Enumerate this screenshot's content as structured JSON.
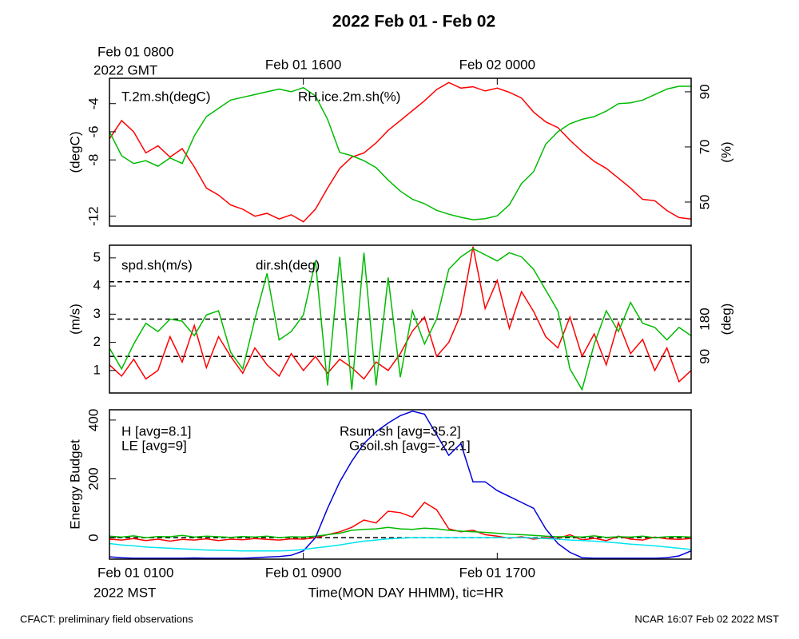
{
  "title": "2022 Feb 01 - Feb 02",
  "footer_left": "CFACT: preliminary field observations",
  "footer_right": "NCAR 16:07 Feb 02 2022 MST",
  "chart_data": [
    {
      "type": "line",
      "xlim": [
        0,
        24
      ],
      "x2ticks": [
        {
          "value": 0,
          "label": "Feb 01 0800"
        },
        {
          "value": 8,
          "label": "Feb 01 1600"
        },
        {
          "value": 16,
          "label": "Feb 02 0000"
        }
      ],
      "x2axis_note": "2022 GMT",
      "ylabel": "(degC)",
      "y2label": "(%)",
      "ylim": [
        -12.7,
        -2.2
      ],
      "yticks": [
        -4,
        -6,
        -8,
        -12
      ],
      "y2lim": [
        41.3,
        94.9
      ],
      "y2ticks": [
        90,
        70,
        50
      ],
      "x": [
        0,
        0.5,
        1,
        1.5,
        2,
        2.5,
        3,
        3.5,
        4,
        4.5,
        5,
        5.5,
        6,
        6.5,
        7,
        7.5,
        8,
        8.5,
        9,
        9.5,
        10,
        10.5,
        11,
        11.5,
        12,
        12.5,
        13,
        13.5,
        14,
        14.5,
        15,
        15.5,
        16,
        16.5,
        17,
        17.5,
        18,
        18.5,
        19,
        19.5,
        20,
        20.5,
        21,
        21.5,
        22,
        22.5,
        23,
        23.5,
        24
      ],
      "series": [
        {
          "name": "T.2m.sh(degC)",
          "color": "#ff0000",
          "axis": "y",
          "values": [
            -6.5,
            -5.2,
            -6,
            -7.5,
            -7,
            -7.8,
            -7.2,
            -8.5,
            -10,
            -10.5,
            -11.2,
            -11.5,
            -12,
            -11.8,
            -12.2,
            -11.9,
            -12.4,
            -11.5,
            -10,
            -8.6,
            -7.8,
            -7.5,
            -6.8,
            -5.9,
            -5.2,
            -4.5,
            -3.8,
            -3.0,
            -2.5,
            -2.9,
            -2.8,
            -3.1,
            -2.9,
            -3.2,
            -3.6,
            -4.6,
            -5.3,
            -5.7,
            -6.6,
            -7.4,
            -8.1,
            -8.6,
            -9.3,
            -10,
            -10.8,
            -10.9,
            -11.6,
            -12.1,
            -12.2
          ]
        },
        {
          "name": "RH.ice.2m.sh(%)",
          "color": "#00bb00",
          "axis": "y2",
          "values": [
            75.5,
            66.8,
            64,
            65,
            63,
            66,
            64,
            74,
            81,
            84,
            87,
            88,
            89,
            90,
            91,
            90,
            91.5,
            88.5,
            80,
            68,
            66.8,
            65,
            62.5,
            58,
            54,
            51,
            49.4,
            47,
            45.6,
            44.5,
            43.6,
            44,
            45,
            49,
            56.7,
            61,
            71,
            75.5,
            78.4,
            80,
            81,
            83,
            85.7,
            86,
            87,
            89,
            91,
            92,
            92
          ]
        }
      ]
    },
    {
      "type": "line",
      "xlim": [
        0,
        24
      ],
      "ylabel": "(m/s)",
      "y2label": "(deg)",
      "ylim": [
        0.2,
        5.45
      ],
      "yticks": [
        5,
        4,
        3,
        2,
        1
      ],
      "y2lim": [
        2,
        358
      ],
      "y2ticks": [
        180,
        90
      ],
      "y2hlines": [
        90,
        180,
        270
      ],
      "x": [
        0,
        0.5,
        1,
        1.5,
        2,
        2.5,
        3,
        3.5,
        4,
        4.5,
        5,
        5.5,
        6,
        6.5,
        7,
        7.5,
        8,
        8.5,
        9,
        9.5,
        10,
        10.5,
        11,
        11.5,
        12,
        12.5,
        13,
        13.5,
        14,
        14.5,
        15,
        15.5,
        16,
        16.5,
        17,
        17.5,
        18,
        18.5,
        19,
        19.5,
        20,
        20.5,
        21,
        21.5,
        22,
        22.5,
        23,
        23.5,
        24
      ],
      "series": [
        {
          "name": "spd.sh(m/s)",
          "color": "#ff0000",
          "axis": "y",
          "values": [
            1.2,
            0.8,
            1.4,
            0.7,
            1.0,
            2.2,
            1.3,
            2.6,
            1.1,
            2.2,
            1.5,
            0.9,
            1.8,
            1.2,
            0.8,
            1.6,
            1.0,
            1.5,
            0.9,
            1.4,
            1.1,
            0.7,
            1.3,
            1.0,
            1.6,
            2.4,
            2.9,
            1.5,
            2.0,
            3.0,
            5.4,
            3.2,
            4.2,
            2.5,
            3.8,
            3.1,
            2.2,
            1.8,
            2.9,
            1.5,
            2.3,
            1.2,
            2.7,
            1.6,
            2.1,
            1.0,
            1.8,
            0.6,
            1.0
          ]
        },
        {
          "name": "dir.sh(deg)",
          "color": "#00bb00",
          "axis": "y2",
          "values": [
            110,
            60,
            120,
            170,
            150,
            180,
            175,
            140,
            190,
            200,
            100,
            60,
            180,
            290,
            130,
            150,
            190,
            320,
            20,
            330,
            10,
            340,
            20,
            280,
            40,
            200,
            120,
            180,
            300,
            330,
            350,
            335,
            320,
            340,
            330,
            300,
            250,
            200,
            60,
            10,
            120,
            200,
            150,
            220,
            170,
            160,
            130,
            160,
            140
          ]
        }
      ]
    },
    {
      "type": "line",
      "xlim": [
        0,
        24
      ],
      "xticks": [
        {
          "value": 0,
          "label": "Feb 01 0100"
        },
        {
          "value": 8,
          "label": "Feb 01 0900"
        },
        {
          "value": 16,
          "label": "Feb 01 1700"
        }
      ],
      "xaxis_note": "2022 MST",
      "xlabel": "Time(MON DAY HHMM), tic=HR",
      "ylabel": "Energy Budget",
      "ylim": [
        -73,
        435
      ],
      "yticks": [
        400,
        200,
        0
      ],
      "yhlines": [
        0
      ],
      "x": [
        0,
        0.5,
        1,
        1.5,
        2,
        2.5,
        3,
        3.5,
        4,
        4.5,
        5,
        5.5,
        6,
        6.5,
        7,
        7.5,
        8,
        8.5,
        9,
        9.5,
        10,
        10.5,
        11,
        11.5,
        12,
        12.5,
        13,
        13.5,
        14,
        14.5,
        15,
        15.5,
        16,
        16.5,
        17,
        17.5,
        18,
        18.5,
        19,
        19.5,
        20,
        20.5,
        21,
        21.5,
        22,
        22.5,
        23,
        23.5,
        24
      ],
      "series": [
        {
          "name": "H [avg=8.1]",
          "color": "#ff0000",
          "axis": "y",
          "values": [
            -5,
            -8,
            -3,
            -10,
            -5,
            -12,
            -6,
            -8,
            -4,
            -10,
            -5,
            -7,
            -3,
            -6,
            -8,
            -4,
            -5,
            0,
            10,
            20,
            35,
            60,
            50,
            90,
            85,
            70,
            120,
            95,
            30,
            20,
            25,
            10,
            5,
            -2,
            3,
            -5,
            0,
            -3,
            10,
            -8,
            -2,
            -10,
            5,
            -5,
            -8,
            2,
            -4,
            -6,
            -3
          ]
        },
        {
          "name": "LE [avg=9]",
          "color": "#00bb00",
          "axis": "y",
          "values": [
            5,
            2,
            6,
            0,
            4,
            3,
            8,
            2,
            5,
            3,
            1,
            4,
            2,
            5,
            0,
            3,
            2,
            5,
            10,
            15,
            25,
            28,
            30,
            35,
            30,
            28,
            32,
            30,
            25,
            22,
            20,
            18,
            15,
            12,
            10,
            8,
            5,
            3,
            4,
            2,
            6,
            1,
            3,
            2,
            5,
            0,
            3,
            4,
            2
          ]
        },
        {
          "name": "Rsum.sh [avg=35.2]",
          "color": "#0000dd",
          "axis": "y",
          "values": [
            -65,
            -68,
            -70,
            -70,
            -70,
            -70,
            -70,
            -69,
            -70,
            -70,
            -70,
            -70,
            -68,
            -66,
            -64,
            -60,
            -45,
            0,
            100,
            190,
            260,
            320,
            360,
            390,
            415,
            430,
            420,
            350,
            280,
            320,
            190,
            190,
            160,
            140,
            120,
            100,
            30,
            -20,
            -50,
            -68,
            -70,
            -70,
            -70,
            -70,
            -70,
            -70,
            -68,
            -62,
            -45
          ]
        },
        {
          "name": "Gsoil.sh [avg=-22.1]",
          "color": "#00e5ee",
          "axis": "y",
          "values": [
            -20,
            -25,
            -28,
            -32,
            -34,
            -36,
            -38,
            -40,
            -42,
            -43,
            -44,
            -45,
            -45,
            -45,
            -45,
            -44,
            -40,
            -35,
            -30,
            -25,
            -18,
            -12,
            -8,
            -4,
            -2,
            0,
            0,
            0,
            0,
            0,
            0,
            0,
            0,
            0,
            0,
            -1,
            -3,
            -5,
            -8,
            -10,
            -12,
            -15,
            -18,
            -22,
            -25,
            -28,
            -32,
            -36,
            -40
          ]
        }
      ]
    }
  ]
}
